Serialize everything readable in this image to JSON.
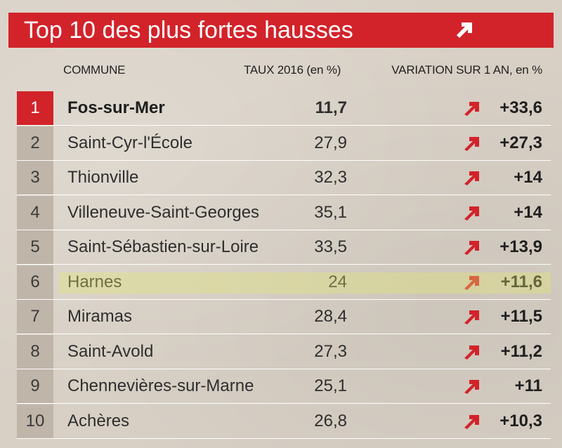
{
  "header": {
    "title": "Top 10 des plus fortes hausses",
    "icon": "arrow-up-right-icon",
    "color": "#d2232a"
  },
  "columns": {
    "commune": "COMMUNE",
    "taux": "TAUX 2016 (en %)",
    "variation": "VARIATION SUR 1 AN, en %"
  },
  "rows": [
    {
      "rank": "1",
      "commune": "Fos-sur-Mer",
      "taux": "11,7",
      "variation": "+33,6"
    },
    {
      "rank": "2",
      "commune": "Saint-Cyr-l'École",
      "taux": "27,9",
      "variation": "+27,3"
    },
    {
      "rank": "3",
      "commune": "Thionville",
      "taux": "32,3",
      "variation": "+14"
    },
    {
      "rank": "4",
      "commune": "Villeneuve-Saint-Georges",
      "taux": "35,1",
      "variation": "+14"
    },
    {
      "rank": "5",
      "commune": "Saint-Sébastien-sur-Loire",
      "taux": "33,5",
      "variation": "+13,9"
    },
    {
      "rank": "6",
      "commune": "Harnes",
      "taux": "24",
      "variation": "+11,6"
    },
    {
      "rank": "7",
      "commune": "Miramas",
      "taux": "28,4",
      "variation": "+11,5"
    },
    {
      "rank": "8",
      "commune": "Saint-Avold",
      "taux": "27,3",
      "variation": "+11,2"
    },
    {
      "rank": "9",
      "commune": "Chennevières-sur-Marne",
      "taux": "25,1",
      "variation": "+11"
    },
    {
      "rank": "10",
      "commune": "Achères",
      "taux": "26,8",
      "variation": "+10,3"
    }
  ]
}
